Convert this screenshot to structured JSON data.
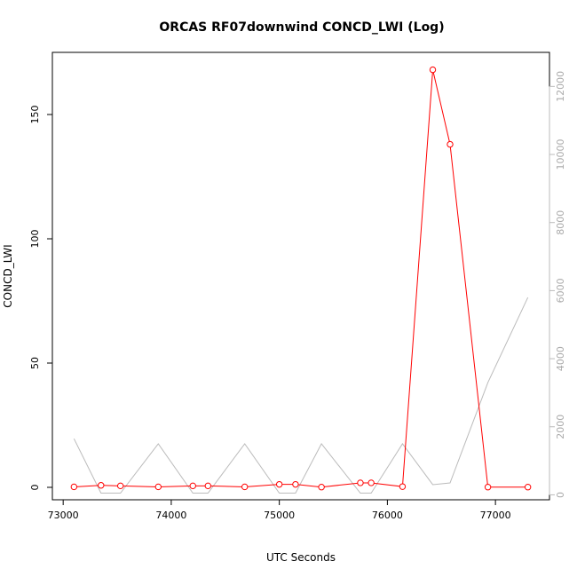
{
  "chart_data": {
    "type": "line",
    "title": "ORCAS RF07downwind CONCD_LWI (Log)",
    "xlabel": "UTC Seconds",
    "ylabel": "CONCD_LWI",
    "xlim": [
      72900,
      77500
    ],
    "ylim": [
      -5,
      175
    ],
    "y2lim": [
      -145,
      13000
    ],
    "x_ticks": [
      73000,
      74000,
      75000,
      76000,
      77000
    ],
    "y_ticks": [
      0,
      50,
      100,
      150
    ],
    "y2_ticks": [
      0,
      2000,
      4000,
      6000,
      8000,
      10000,
      12000
    ],
    "grid": false,
    "colors": {
      "primary": "#ff0000",
      "secondary": "#bbbbbb"
    },
    "series": [
      {
        "axis": "left",
        "marker": "circle",
        "x": [
          73100,
          73350,
          73530,
          73880,
          74200,
          74340,
          74680,
          75000,
          75150,
          75390,
          75750,
          75850,
          76140,
          76420,
          76580,
          76930,
          77300
        ],
        "y": [
          0.2,
          0.8,
          0.6,
          0.2,
          0.6,
          0.6,
          0.2,
          1.2,
          1.2,
          0.1,
          1.8,
          1.8,
          0.3,
          168,
          138,
          0.1,
          0.1
        ]
      },
      {
        "axis": "right",
        "x": [
          73100,
          73350,
          73530,
          73880,
          74200,
          74340,
          74680,
          75000,
          75150,
          75390,
          75750,
          75850,
          76140,
          76420,
          76580,
          76930,
          77300
        ],
        "y": [
          1650,
          50,
          50,
          1500,
          50,
          50,
          1500,
          50,
          50,
          1500,
          50,
          50,
          1500,
          300,
          350,
          3300,
          5800
        ]
      }
    ]
  }
}
